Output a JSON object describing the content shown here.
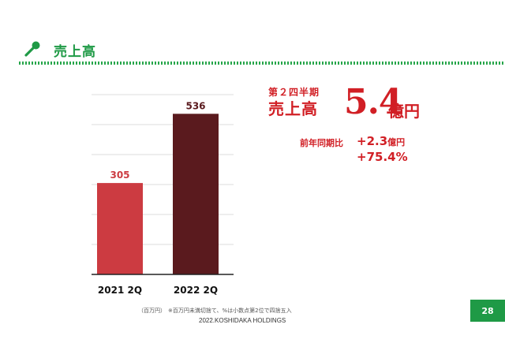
{
  "header": {
    "title": "売上高",
    "icon": "microphone-icon",
    "accent": "#1f9a46"
  },
  "summary": {
    "period": "第２四半期",
    "metric": "売上高",
    "value": "5.4",
    "unit": "億円",
    "yoy_label": "前年同期比",
    "delta_abs": "+2.3",
    "delta_abs_unit": "億円",
    "delta_pct": "+75.4%",
    "accent": "#d11f25"
  },
  "chart_data": {
    "type": "bar",
    "categories": [
      "2021 2Q",
      "2022 2Q"
    ],
    "values": [
      305,
      536
    ],
    "data_labels": [
      "305",
      "536"
    ],
    "colors": [
      "#cc3b41",
      "#5a1a1e"
    ],
    "ylim": [
      0,
      600
    ],
    "grid": true,
    "title": "",
    "xlabel": "",
    "ylabel": ""
  },
  "footer": {
    "unit_note": "（百万円）",
    "rounding_note": "※百万円未満切捨て、%は小数点第2位で四捨五入",
    "copyright": "2022.KOSHIDAKA HOLDINGS",
    "page": "28"
  }
}
